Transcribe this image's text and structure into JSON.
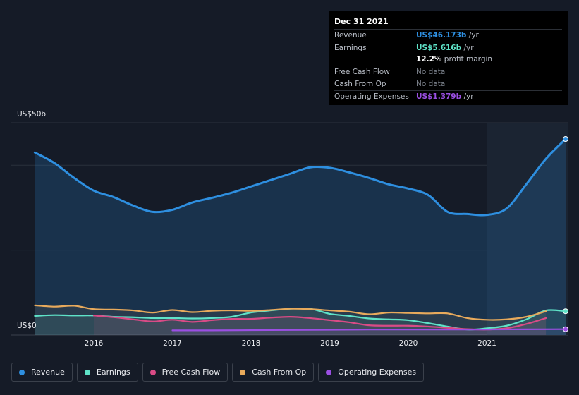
{
  "chart_data": {
    "type": "area",
    "title": "",
    "xlabel": "",
    "ylabel": "",
    "y_top_label": "US$50b",
    "y_bottom_label": "US$0",
    "ylim": [
      0,
      50
    ],
    "xlim": [
      2015.0,
      2022.0
    ],
    "x_ticks": [
      "2016",
      "2017",
      "2018",
      "2019",
      "2020",
      "2021"
    ],
    "x_tick_values": [
      2016,
      2017,
      2018,
      2019,
      2020,
      2021
    ],
    "forecast_region_start": 2021.0,
    "series": [
      {
        "name": "Revenue",
        "color": "#2e8fe0",
        "x": [
          2015.25,
          2015.5,
          2015.75,
          2016.0,
          2016.25,
          2016.5,
          2016.75,
          2017.0,
          2017.25,
          2017.5,
          2017.75,
          2018.0,
          2018.25,
          2018.5,
          2018.75,
          2019.0,
          2019.25,
          2019.5,
          2019.75,
          2020.0,
          2020.25,
          2020.5,
          2020.75,
          2021.0,
          2021.25,
          2021.5,
          2021.75,
          2022.0
        ],
        "values": [
          43,
          40.5,
          37,
          34,
          32.5,
          30.5,
          29,
          29.5,
          31.2,
          32.3,
          33.5,
          35,
          36.5,
          38,
          39.5,
          39.4,
          38.3,
          37,
          35.5,
          34.5,
          33,
          29,
          28.5,
          28.3,
          29.8,
          35.5,
          41.5,
          46.173
        ]
      },
      {
        "name": "Earnings",
        "color": "#5fe3c8",
        "x": [
          2015.25,
          2015.5,
          2015.75,
          2016.0,
          2016.25,
          2016.5,
          2016.75,
          2017.0,
          2017.25,
          2017.5,
          2017.75,
          2018.0,
          2018.25,
          2018.5,
          2018.75,
          2019.0,
          2019.25,
          2019.5,
          2019.75,
          2020.0,
          2020.25,
          2020.5,
          2020.75,
          2021.0,
          2021.25,
          2021.5,
          2021.75,
          2022.0
        ],
        "values": [
          4.5,
          4.7,
          4.6,
          4.6,
          4.3,
          4.2,
          4.0,
          4.0,
          3.9,
          4.0,
          4.3,
          5.3,
          5.8,
          6.2,
          6.2,
          5.0,
          4.5,
          3.9,
          3.7,
          3.5,
          2.8,
          2.0,
          1.3,
          1.6,
          2.2,
          3.7,
          5.8,
          5.616
        ]
      },
      {
        "name": "Free Cash Flow",
        "color": "#d94b86",
        "x": [
          2016.0,
          2016.25,
          2016.5,
          2016.75,
          2017.0,
          2017.25,
          2017.5,
          2017.75,
          2018.0,
          2018.25,
          2018.5,
          2018.75,
          2019.0,
          2019.25,
          2019.5,
          2019.75,
          2020.0,
          2020.25,
          2020.5,
          2020.75,
          2021.0,
          2021.25,
          2021.5,
          2021.75
        ],
        "values": [
          4.6,
          4.2,
          3.7,
          3.2,
          3.6,
          3.1,
          3.5,
          3.8,
          3.8,
          4.1,
          4.3,
          4.0,
          3.5,
          3.0,
          2.3,
          2.2,
          2.2,
          2.0,
          1.7,
          1.4,
          1.3,
          1.6,
          2.6,
          4.0
        ]
      },
      {
        "name": "Cash From Op",
        "color": "#e8aa5c",
        "x": [
          2015.25,
          2015.5,
          2015.75,
          2016.0,
          2016.25,
          2016.5,
          2016.75,
          2017.0,
          2017.25,
          2017.5,
          2017.75,
          2018.0,
          2018.25,
          2018.5,
          2018.75,
          2019.0,
          2019.25,
          2019.5,
          2019.75,
          2020.0,
          2020.25,
          2020.5,
          2020.75,
          2021.0,
          2021.25,
          2021.5,
          2021.75
        ],
        "values": [
          7.0,
          6.7,
          6.9,
          6.1,
          6.0,
          5.8,
          5.3,
          5.9,
          5.4,
          5.7,
          5.8,
          5.7,
          5.9,
          6.2,
          6.1,
          5.8,
          5.5,
          4.9,
          5.3,
          5.2,
          5.1,
          5.1,
          4.0,
          3.6,
          3.7,
          4.3,
          5.6
        ]
      },
      {
        "name": "Operating Expenses",
        "color": "#9b4fe3",
        "x": [
          2017.0,
          2017.5,
          2018.0,
          2018.5,
          2019.0,
          2019.5,
          2020.0,
          2020.5,
          2021.0,
          2021.5,
          2022.0
        ],
        "values": [
          1.1,
          1.1,
          1.15,
          1.2,
          1.25,
          1.3,
          1.3,
          1.3,
          1.32,
          1.35,
          1.379
        ]
      }
    ]
  },
  "tooltip": {
    "date": "Dec 31 2021",
    "rows": [
      {
        "label": "Revenue",
        "value": "US$46.173b",
        "unit": "/yr",
        "color": "#2e8fe0"
      },
      {
        "label": "Earnings",
        "value": "US$5.616b",
        "unit": "/yr",
        "color": "#5fe3c8"
      },
      {
        "label": "",
        "value": "12.2%",
        "unit": "profit margin",
        "color": "#ffffff"
      },
      {
        "label": "Free Cash Flow",
        "value": "No data",
        "unit": "",
        "color": "#7a808a"
      },
      {
        "label": "Cash From Op",
        "value": "No data",
        "unit": "",
        "color": "#7a808a"
      },
      {
        "label": "Operating Expenses",
        "value": "US$1.379b",
        "unit": "/yr",
        "color": "#9b4fe3"
      }
    ]
  },
  "legend": [
    {
      "label": "Revenue",
      "color": "#2e8fe0"
    },
    {
      "label": "Earnings",
      "color": "#5fe3c8"
    },
    {
      "label": "Free Cash Flow",
      "color": "#d94b86"
    },
    {
      "label": "Cash From Op",
      "color": "#e8aa5c"
    },
    {
      "label": "Operating Expenses",
      "color": "#9b4fe3"
    }
  ]
}
